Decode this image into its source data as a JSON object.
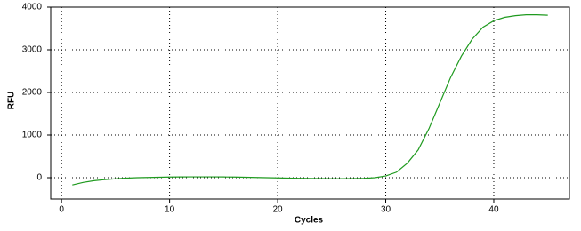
{
  "chart_data": {
    "type": "line",
    "x_label": "Cycles",
    "y_label": "RFU",
    "x": [
      1,
      2,
      3,
      4,
      5,
      6,
      7,
      8,
      9,
      10,
      11,
      12,
      13,
      14,
      15,
      16,
      17,
      18,
      19,
      20,
      21,
      22,
      23,
      24,
      25,
      26,
      27,
      28,
      29,
      30,
      31,
      32,
      33,
      34,
      35,
      36,
      37,
      38,
      39,
      40,
      41,
      42,
      43,
      44,
      45
    ],
    "values": [
      -170,
      -110,
      -70,
      -45,
      -25,
      -10,
      0,
      5,
      10,
      15,
      18,
      20,
      20,
      20,
      18,
      15,
      10,
      5,
      0,
      -5,
      -10,
      -15,
      -18,
      -20,
      -22,
      -22,
      -20,
      -15,
      0,
      40,
      130,
      340,
      650,
      1150,
      1750,
      2350,
      2850,
      3250,
      3530,
      3680,
      3760,
      3800,
      3820,
      3820,
      3810
    ],
    "color": "#1f9a1f",
    "xlim": [
      -1,
      47
    ],
    "xticks": [
      0,
      10,
      20,
      30,
      40
    ],
    "ylim": [
      -500,
      4000
    ],
    "yticks": [
      0,
      1000,
      2000,
      3000,
      4000
    ],
    "grid": true
  }
}
